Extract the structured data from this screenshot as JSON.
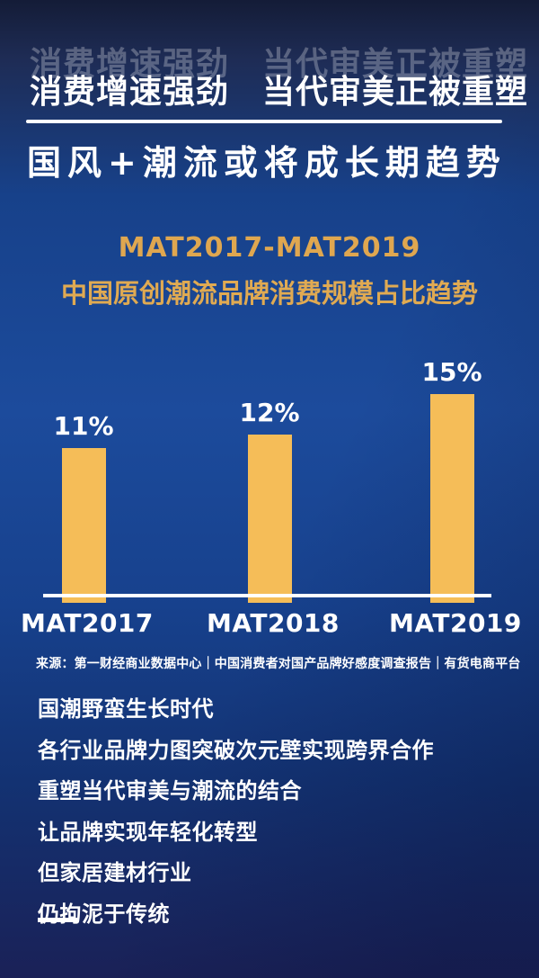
{
  "header": {
    "title": "消费增速强劲　当代审美正被重塑",
    "slogan": "国风+潮流或将成长期趋势"
  },
  "chart_data": {
    "type": "bar",
    "title": "MAT2017-MAT2019",
    "subtitle": "中国原创潮流品牌消费规模占比趋势",
    "categories": [
      "MAT2017",
      "MAT2018",
      "MAT2019"
    ],
    "values": [
      11,
      12,
      15
    ],
    "unit": "%",
    "value_labels": [
      "11%",
      "12%",
      "15%"
    ],
    "ylim": [
      0,
      16
    ],
    "grid": false,
    "legend": false,
    "bar_color": "#F5BD58",
    "value_label_color": "#FFFFFF",
    "axis_color": "#FFFFFF"
  },
  "source": {
    "text": "来源：第一财经商业数据中心｜中国消费者对国产品牌好感度调查报告｜有货电商平台"
  },
  "body": {
    "lines": [
      "国潮野蛮生长时代",
      "各行业品牌力图突破次元壁实现跨界合作",
      "重塑当代审美与潮流的结合",
      "让品牌实现年轻化转型",
      "但家居建材行业",
      "仍拘泥于传统"
    ]
  },
  "colors": {
    "background_top": "#141C37",
    "background_mid": "#1C4B9C",
    "background_bottom": "#1A2157",
    "accent_gold": "#DFA750",
    "bar_gold": "#F5BD58",
    "text_white": "#FFFFFF"
  }
}
